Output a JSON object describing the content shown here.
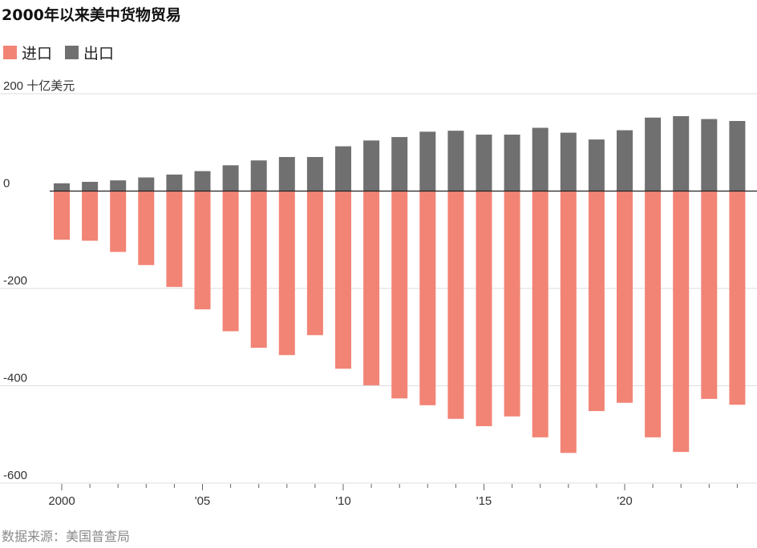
{
  "title": "2000年以来美中货物贸易",
  "legend": {
    "imports_label": "进口",
    "exports_label": "出口"
  },
  "source": "数据来源：美国普查局",
  "colors": {
    "imports": "#f28475",
    "exports": "#707070",
    "grid": "#dddddd",
    "zero_line": "#222222"
  },
  "chart_data": {
    "type": "bar",
    "title": "2000年以来美中货物贸易",
    "unit_label": "十亿美元",
    "ylim": [
      -600,
      200
    ],
    "yticks": [
      {
        "value": 200,
        "label": "200 十亿美元"
      },
      {
        "value": 0,
        "label": "0"
      },
      {
        "value": -200,
        "label": "-200"
      },
      {
        "value": -400,
        "label": "-400"
      },
      {
        "value": -600,
        "label": "-600"
      }
    ],
    "x": [
      2000,
      2001,
      2002,
      2003,
      2004,
      2005,
      2006,
      2007,
      2008,
      2009,
      2010,
      2011,
      2012,
      2013,
      2014,
      2015,
      2016,
      2017,
      2018,
      2019,
      2020,
      2021,
      2022,
      2023,
      2024
    ],
    "xticks": [
      {
        "value": 2000,
        "label": "2000"
      },
      {
        "value": 2005,
        "label": "'05"
      },
      {
        "value": 2010,
        "label": "'10"
      },
      {
        "value": 2015,
        "label": "'15"
      },
      {
        "value": 2020,
        "label": "'20"
      }
    ],
    "series": [
      {
        "name": "出口",
        "values": [
          16,
          19,
          22,
          28,
          34,
          41,
          53,
          63,
          70,
          70,
          92,
          104,
          111,
          122,
          124,
          116,
          116,
          130,
          120,
          106,
          125,
          151,
          154,
          148,
          144
        ]
      },
      {
        "name": "进口",
        "values": [
          -100,
          -102,
          -125,
          -152,
          -197,
          -243,
          -288,
          -322,
          -337,
          -296,
          -365,
          -399,
          -426,
          -440,
          -468,
          -483,
          -463,
          -506,
          -538,
          -452,
          -435,
          -506,
          -536,
          -427,
          -439
        ]
      }
    ],
    "grid": true,
    "legend_position": "top-left"
  }
}
